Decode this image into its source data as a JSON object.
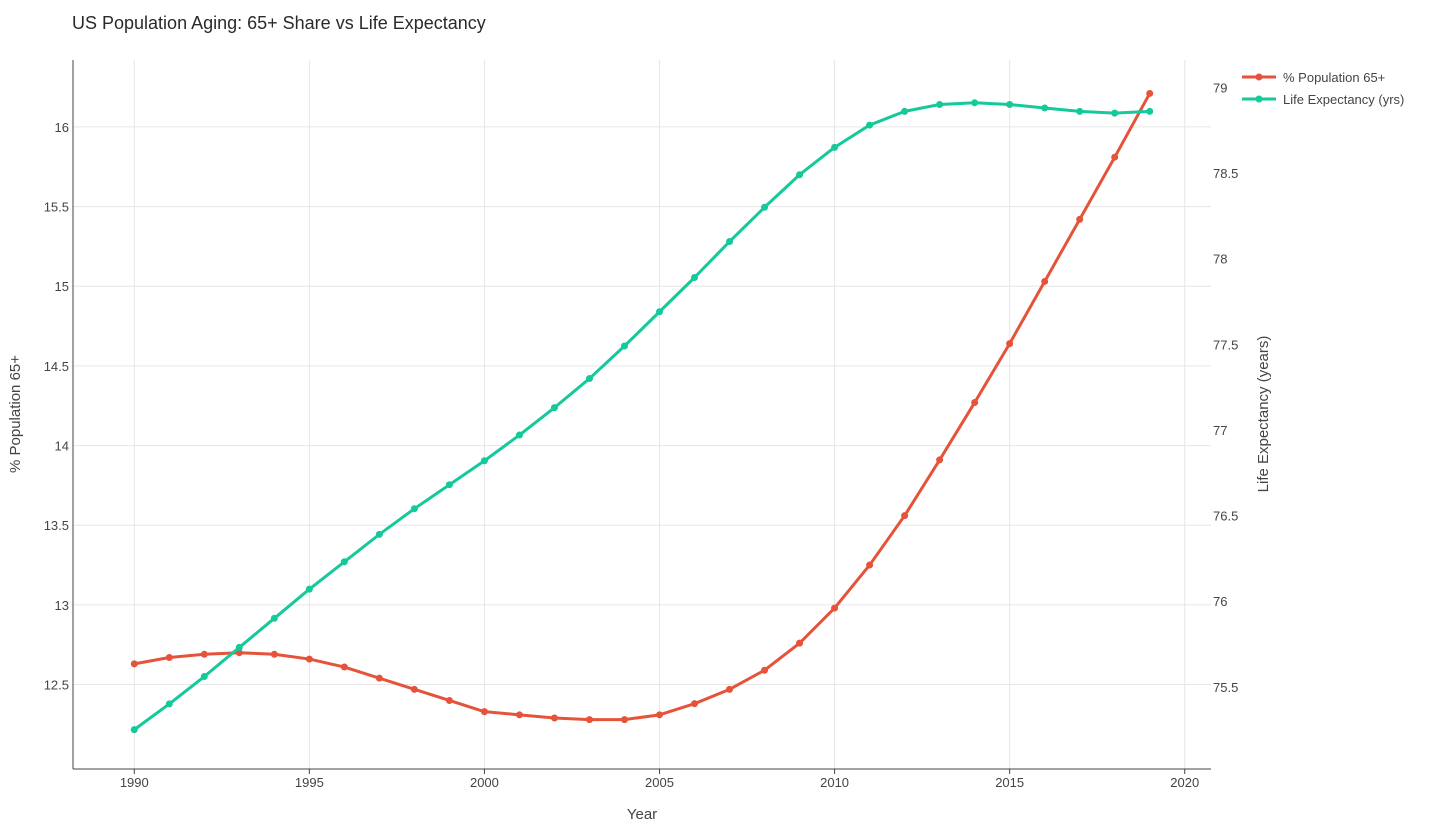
{
  "chart_data": {
    "type": "line",
    "title": "US Population Aging: 65+ Share vs Life Expectancy",
    "xlabel": "Year",
    "ylabel": "% Population 65+",
    "y2label": "Life Expectancy (years)",
    "xlim": [
      1988.25,
      2020.75
    ],
    "ylim": [
      11.97,
      16.42
    ],
    "y2lim": [
      75.02,
      79.16
    ],
    "x_ticks": [
      1990,
      1995,
      2000,
      2005,
      2010,
      2015,
      2020
    ],
    "y_ticks": [
      12.5,
      13,
      13.5,
      14,
      14.5,
      15,
      15.5,
      16
    ],
    "y2_ticks": [
      75.5,
      76,
      76.5,
      77,
      77.5,
      78,
      78.5,
      79
    ],
    "grid": true,
    "legend_position": "top-right",
    "x": [
      1990,
      1991,
      1992,
      1993,
      1994,
      1995,
      1996,
      1997,
      1998,
      1999,
      2000,
      2001,
      2002,
      2003,
      2004,
      2005,
      2006,
      2007,
      2008,
      2009,
      2010,
      2011,
      2012,
      2013,
      2014,
      2015,
      2016,
      2017,
      2018,
      2019
    ],
    "series": [
      {
        "name": "% Population 65+",
        "axis": "left",
        "color": "#E5533A",
        "values": [
          12.63,
          12.67,
          12.69,
          12.7,
          12.69,
          12.66,
          12.61,
          12.54,
          12.47,
          12.4,
          12.33,
          12.31,
          12.29,
          12.28,
          12.28,
          12.31,
          12.38,
          12.47,
          12.59,
          12.76,
          12.98,
          13.25,
          13.56,
          13.91,
          14.27,
          14.64,
          15.03,
          15.42,
          15.81,
          16.21
        ]
      },
      {
        "name": "Life Expectancy (yrs)",
        "axis": "right",
        "color": "#14C99A",
        "values": [
          75.25,
          75.4,
          75.56,
          75.73,
          75.9,
          76.07,
          76.23,
          76.39,
          76.54,
          76.68,
          76.82,
          76.97,
          77.13,
          77.3,
          77.49,
          77.69,
          77.89,
          78.1,
          78.3,
          78.49,
          78.65,
          78.78,
          78.86,
          78.9,
          78.91,
          78.9,
          78.88,
          78.86,
          78.85,
          78.86
        ]
      }
    ]
  }
}
